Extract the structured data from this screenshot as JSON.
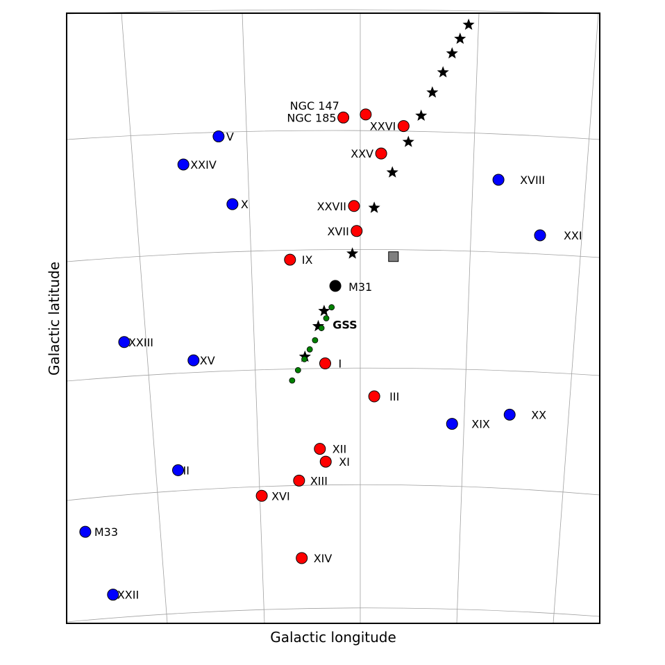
{
  "chart_data": {
    "type": "scatter",
    "xlabel": "Galactic longitude",
    "ylabel": "Galactic latitude",
    "grid": true,
    "projection": "curved sky grid",
    "colors": {
      "red_satellite": "#ff0000",
      "blue_satellite": "#0000ff",
      "center": "#000000",
      "stream_star": "#000000",
      "stream_dot": "#008000",
      "square_marker": "#808080",
      "grid": "#a0a0a0"
    },
    "series": [
      {
        "marker": "red circle",
        "points": [
          {
            "label": "NGC 147",
            "x": 0.561,
            "y": 0.834
          },
          {
            "label": "NGC 185",
            "x": 0.519,
            "y": 0.829
          },
          {
            "label": "XXVI",
            "x": 0.632,
            "y": 0.815
          },
          {
            "label": "XXV",
            "x": 0.59,
            "y": 0.77
          },
          {
            "label": "XXVII",
            "x": 0.539,
            "y": 0.684
          },
          {
            "label": "XVII",
            "x": 0.544,
            "y": 0.643
          },
          {
            "label": "IX",
            "x": 0.419,
            "y": 0.596
          },
          {
            "label": "I",
            "x": 0.485,
            "y": 0.426
          },
          {
            "label": "III",
            "x": 0.577,
            "y": 0.372
          },
          {
            "label": "XII",
            "x": 0.475,
            "y": 0.286
          },
          {
            "label": "XI",
            "x": 0.486,
            "y": 0.265
          },
          {
            "label": "XIII",
            "x": 0.436,
            "y": 0.234
          },
          {
            "label": "XVI",
            "x": 0.366,
            "y": 0.209
          },
          {
            "label": "XIV",
            "x": 0.441,
            "y": 0.107
          }
        ]
      },
      {
        "marker": "blue circle",
        "points": [
          {
            "label": "V",
            "x": 0.285,
            "y": 0.798
          },
          {
            "label": "XXIV",
            "x": 0.219,
            "y": 0.752
          },
          {
            "label": "X",
            "x": 0.311,
            "y": 0.687
          },
          {
            "label": "XVIII",
            "x": 0.81,
            "y": 0.727
          },
          {
            "label": "XXI",
            "x": 0.888,
            "y": 0.636
          },
          {
            "label": "XXIII",
            "x": 0.108,
            "y": 0.461
          },
          {
            "label": "XV",
            "x": 0.238,
            "y": 0.431
          },
          {
            "label": "XIX",
            "x": 0.723,
            "y": 0.327
          },
          {
            "label": "XX",
            "x": 0.831,
            "y": 0.342
          },
          {
            "label": "II",
            "x": 0.209,
            "y": 0.251
          },
          {
            "label": "M33",
            "x": 0.035,
            "y": 0.15
          },
          {
            "label": "XXII",
            "x": 0.087,
            "y": 0.047
          }
        ]
      },
      {
        "marker": "black circle",
        "points": [
          {
            "label": "M31",
            "x": 0.504,
            "y": 0.553
          }
        ]
      },
      {
        "marker": "black star",
        "points": [
          {
            "x": 0.754,
            "y": 0.981
          },
          {
            "x": 0.738,
            "y": 0.958
          },
          {
            "x": 0.723,
            "y": 0.934
          },
          {
            "x": 0.706,
            "y": 0.903
          },
          {
            "x": 0.686,
            "y": 0.87
          },
          {
            "x": 0.665,
            "y": 0.832
          },
          {
            "x": 0.641,
            "y": 0.789
          },
          {
            "x": 0.611,
            "y": 0.739
          },
          {
            "x": 0.577,
            "y": 0.681
          },
          {
            "x": 0.536,
            "y": 0.606
          },
          {
            "x": 0.483,
            "y": 0.512
          },
          {
            "x": 0.472,
            "y": 0.487
          },
          {
            "x": 0.447,
            "y": 0.437
          }
        ]
      },
      {
        "marker": "green dot",
        "points": [
          {
            "x": 0.497,
            "y": 0.518
          },
          {
            "x": 0.487,
            "y": 0.5
          },
          {
            "x": 0.478,
            "y": 0.484
          },
          {
            "x": 0.466,
            "y": 0.464
          },
          {
            "x": 0.456,
            "y": 0.449
          },
          {
            "x": 0.446,
            "y": 0.433
          },
          {
            "x": 0.434,
            "y": 0.415
          },
          {
            "x": 0.423,
            "y": 0.398
          }
        ]
      },
      {
        "marker": "gray square",
        "points": [
          {
            "x": 0.613,
            "y": 0.601
          }
        ]
      }
    ],
    "annotations": [
      {
        "text": "GSS",
        "x": 0.499,
        "y": 0.49
      }
    ]
  }
}
